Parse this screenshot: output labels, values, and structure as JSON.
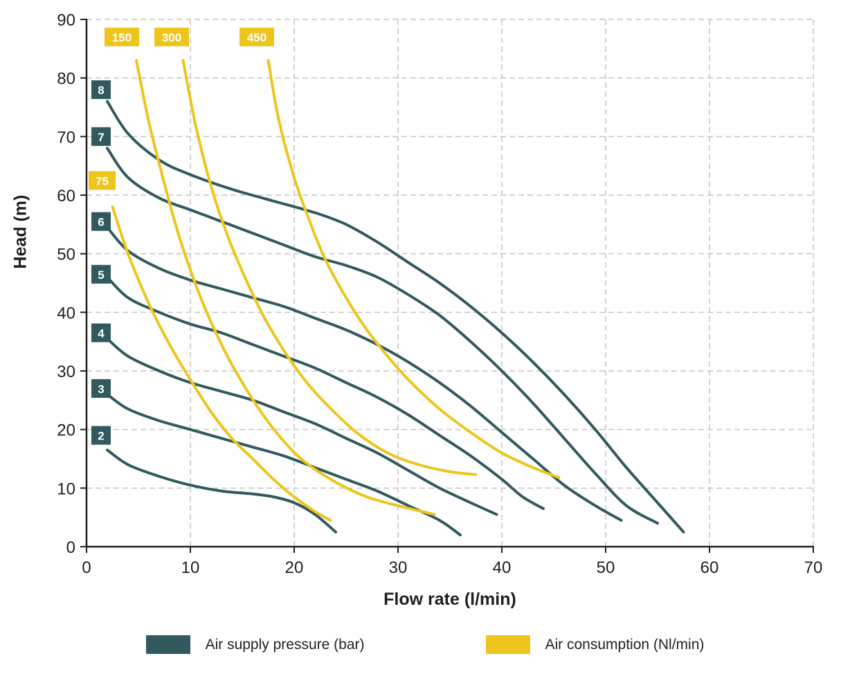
{
  "chart_data": {
    "type": "line",
    "title": "",
    "xlabel": "Flow rate (l/min)",
    "ylabel": "Head (m)",
    "xlim": [
      0,
      70
    ],
    "ylim": [
      0,
      90
    ],
    "x_ticks": [
      0,
      10,
      20,
      30,
      40,
      50,
      60,
      70
    ],
    "y_ticks": [
      0,
      10,
      20,
      30,
      40,
      50,
      60,
      70,
      80,
      90
    ],
    "grid": "dashed",
    "legend_position": "bottom",
    "colors": {
      "pressure": "#31595e",
      "consumption": "#edc51d",
      "grid": "#c4c4c4",
      "axis": "#1f1f1f",
      "tick_text": "#1f1f1f",
      "curve_label_text": "#ffffff"
    },
    "legend": [
      {
        "label": "Air supply pressure (bar)",
        "color": "#31595e"
      },
      {
        "label": "Air consumption (Nl/min)",
        "color": "#edc51d"
      }
    ],
    "series": [
      {
        "name": "pressure-8-bar",
        "group": "pressure",
        "label": "8",
        "label_x": 1.4,
        "label_y": 78,
        "points": [
          [
            2,
            76
          ],
          [
            4,
            70.5
          ],
          [
            7,
            66
          ],
          [
            10,
            63.5
          ],
          [
            14,
            61
          ],
          [
            18,
            59
          ],
          [
            22,
            57
          ],
          [
            25,
            55
          ],
          [
            28,
            52
          ],
          [
            31,
            48.5
          ],
          [
            34,
            45
          ],
          [
            37,
            41
          ],
          [
            40,
            36.5
          ],
          [
            43,
            31.5
          ],
          [
            46,
            26
          ],
          [
            49,
            20
          ],
          [
            52,
            13.5
          ],
          [
            55,
            7.5
          ],
          [
            57.5,
            2.5
          ]
        ]
      },
      {
        "name": "pressure-7-bar",
        "group": "pressure",
        "label": "7",
        "label_x": 1.4,
        "label_y": 70,
        "points": [
          [
            2,
            68
          ],
          [
            4,
            63
          ],
          [
            7,
            59.5
          ],
          [
            10,
            57.5
          ],
          [
            13,
            55.5
          ],
          [
            16,
            53.5
          ],
          [
            19,
            51.5
          ],
          [
            22,
            49.5
          ],
          [
            25,
            48
          ],
          [
            28,
            46
          ],
          [
            31,
            43
          ],
          [
            34,
            39.5
          ],
          [
            37,
            35
          ],
          [
            40,
            30
          ],
          [
            43,
            24.5
          ],
          [
            46,
            18.5
          ],
          [
            49,
            12.5
          ],
          [
            52,
            7
          ],
          [
            55,
            4
          ]
        ]
      },
      {
        "name": "pressure-6-bar",
        "group": "pressure",
        "label": "6",
        "label_x": 1.4,
        "label_y": 55.5,
        "points": [
          [
            2,
            54.5
          ],
          [
            4,
            50.5
          ],
          [
            7,
            47.5
          ],
          [
            10,
            45.5
          ],
          [
            13,
            44
          ],
          [
            16,
            42.5
          ],
          [
            19,
            41
          ],
          [
            22,
            39
          ],
          [
            25,
            37
          ],
          [
            28,
            34.5
          ],
          [
            31,
            31.5
          ],
          [
            34,
            28
          ],
          [
            37,
            24
          ],
          [
            40,
            19.5
          ],
          [
            43,
            15
          ],
          [
            46,
            10.5
          ],
          [
            49,
            7
          ],
          [
            51.5,
            4.5
          ]
        ]
      },
      {
        "name": "pressure-5-bar",
        "group": "pressure",
        "label": "5",
        "label_x": 1.4,
        "label_y": 46.5,
        "points": [
          [
            2,
            46
          ],
          [
            4,
            42.5
          ],
          [
            7,
            40
          ],
          [
            10,
            38
          ],
          [
            13,
            36.5
          ],
          [
            16,
            34.5
          ],
          [
            19,
            32.5
          ],
          [
            22,
            30.5
          ],
          [
            25,
            28
          ],
          [
            28,
            25.5
          ],
          [
            31,
            22.5
          ],
          [
            34,
            19
          ],
          [
            37,
            15.5
          ],
          [
            40,
            11.5
          ],
          [
            42,
            8.5
          ],
          [
            44,
            6.5
          ]
        ]
      },
      {
        "name": "pressure-4-bar",
        "group": "pressure",
        "label": "4",
        "label_x": 1.4,
        "label_y": 36.5,
        "points": [
          [
            2,
            35.5
          ],
          [
            4,
            32.5
          ],
          [
            7,
            30
          ],
          [
            10,
            28
          ],
          [
            13,
            26.5
          ],
          [
            16,
            25
          ],
          [
            19,
            23
          ],
          [
            22,
            21
          ],
          [
            25,
            18.5
          ],
          [
            28,
            16
          ],
          [
            31,
            13
          ],
          [
            34,
            10
          ],
          [
            37,
            7.5
          ],
          [
            39.5,
            5.5
          ]
        ]
      },
      {
        "name": "pressure-3-bar",
        "group": "pressure",
        "label": "3",
        "label_x": 1.4,
        "label_y": 27,
        "points": [
          [
            2,
            26
          ],
          [
            4,
            23.5
          ],
          [
            7,
            21.5
          ],
          [
            10,
            20
          ],
          [
            13,
            18.5
          ],
          [
            16,
            17
          ],
          [
            19,
            15.5
          ],
          [
            22,
            13.5
          ],
          [
            25,
            11.5
          ],
          [
            28,
            9.5
          ],
          [
            31,
            7
          ],
          [
            34,
            4.5
          ],
          [
            36,
            2
          ]
        ]
      },
      {
        "name": "pressure-2-bar",
        "group": "pressure",
        "label": "2",
        "label_x": 1.4,
        "label_y": 19,
        "points": [
          [
            2,
            16.5
          ],
          [
            4,
            14
          ],
          [
            7,
            12
          ],
          [
            10,
            10.5
          ],
          [
            13,
            9.5
          ],
          [
            16,
            9
          ],
          [
            18,
            8.5
          ],
          [
            20,
            7.5
          ],
          [
            22,
            5.5
          ],
          [
            24,
            2.5
          ]
        ]
      },
      {
        "name": "consumption-75",
        "group": "consumption",
        "label": "75",
        "label_x": 1.5,
        "label_y": 62.5,
        "points": [
          [
            2.5,
            58
          ],
          [
            4,
            50
          ],
          [
            6,
            41.5
          ],
          [
            8,
            34.5
          ],
          [
            10,
            28.5
          ],
          [
            12,
            23
          ],
          [
            14,
            18.5
          ],
          [
            16,
            15
          ],
          [
            18,
            11.5
          ],
          [
            20,
            8.5
          ],
          [
            22,
            6
          ],
          [
            23.5,
            4.5
          ]
        ]
      },
      {
        "name": "consumption-150",
        "group": "consumption",
        "label": "150",
        "label_x": 3.4,
        "label_y": 87,
        "points": [
          [
            4.8,
            83
          ],
          [
            6,
            72.5
          ],
          [
            7.5,
            62
          ],
          [
            9,
            52.5
          ],
          [
            11,
            42.5
          ],
          [
            13,
            34.5
          ],
          [
            15,
            28
          ],
          [
            17,
            22.5
          ],
          [
            19,
            18
          ],
          [
            21,
            14.5
          ],
          [
            24,
            11
          ],
          [
            27,
            8.5
          ],
          [
            30,
            7
          ],
          [
            33.5,
            5.5
          ]
        ]
      },
      {
        "name": "consumption-300",
        "group": "consumption",
        "label": "300",
        "label_x": 8.2,
        "label_y": 87,
        "points": [
          [
            9.3,
            83
          ],
          [
            10.5,
            72
          ],
          [
            12,
            61.5
          ],
          [
            13.5,
            53.5
          ],
          [
            15,
            47
          ],
          [
            17,
            39.5
          ],
          [
            19,
            33.5
          ],
          [
            21,
            28.5
          ],
          [
            23,
            24.5
          ],
          [
            26,
            19.5
          ],
          [
            29,
            16
          ],
          [
            32,
            14
          ],
          [
            35,
            12.8
          ],
          [
            37.5,
            12.3
          ]
        ]
      },
      {
        "name": "consumption-450",
        "group": "consumption",
        "label": "450",
        "label_x": 16.4,
        "label_y": 87,
        "points": [
          [
            17.5,
            83
          ],
          [
            18.5,
            73
          ],
          [
            20,
            63
          ],
          [
            21.5,
            55.5
          ],
          [
            23,
            49
          ],
          [
            25,
            42.5
          ],
          [
            27,
            37
          ],
          [
            29,
            32.5
          ],
          [
            31,
            28.5
          ],
          [
            34,
            23.5
          ],
          [
            37,
            19.5
          ],
          [
            40,
            16
          ],
          [
            43,
            13.5
          ],
          [
            45.5,
            11.8
          ]
        ]
      }
    ]
  }
}
